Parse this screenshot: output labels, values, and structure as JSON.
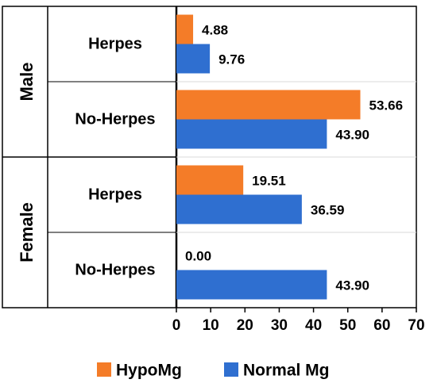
{
  "chart_data": {
    "type": "bar",
    "orientation": "horizontal",
    "groups": [
      {
        "label": "Male",
        "categories": [
          "Herpes",
          "No-Herpes"
        ]
      },
      {
        "label": "Female",
        "categories": [
          "Herpes",
          "No-Herpes"
        ]
      }
    ],
    "series": [
      {
        "name": "HypoMg",
        "color": "#f47c28",
        "values": [
          4.88,
          53.66,
          19.51,
          0.0
        ],
        "labels": [
          "4.88",
          "53.66",
          "19.51",
          "0.00"
        ]
      },
      {
        "name": "Normal Mg",
        "color": "#2f6fd0",
        "values": [
          9.76,
          43.9,
          36.59,
          43.9
        ],
        "labels": [
          "9.76",
          "43.90",
          "36.59",
          "43.90"
        ]
      }
    ],
    "xlim": [
      0,
      70
    ],
    "xticks": [
      0,
      10,
      20,
      30,
      40,
      50,
      60,
      70
    ],
    "grid": false,
    "legend_position": "bottom"
  }
}
